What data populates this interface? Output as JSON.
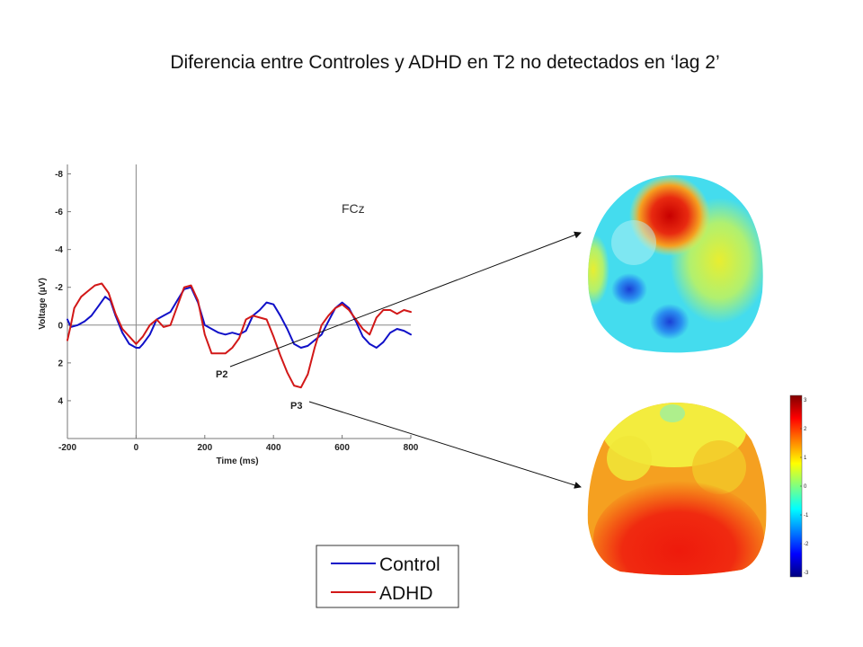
{
  "title": "Diferencia entre Controles y ADHD en T2 no detectados en ‘lag 2’",
  "chart_data": {
    "type": "line",
    "channel": "FCz",
    "xlabel": "Time (ms)",
    "ylabel": "Voltage (μV)",
    "xlim": [
      -200,
      800
    ],
    "ylim": [
      -8.5,
      6
    ],
    "y_inverted": true,
    "grid": false,
    "xticks": [
      -200,
      0,
      200,
      400,
      600,
      800
    ],
    "yticks": [
      -8,
      -6,
      -4,
      -2,
      0,
      2,
      4
    ],
    "series": [
      {
        "name": "Control",
        "color": "#1010c8",
        "x": [
          -200,
          -190,
          -170,
          -150,
          -130,
          -110,
          -90,
          -75,
          -60,
          -40,
          -20,
          0,
          10,
          20,
          40,
          60,
          80,
          100,
          120,
          140,
          160,
          180,
          200,
          220,
          240,
          260,
          280,
          300,
          320,
          340,
          360,
          380,
          400,
          420,
          440,
          460,
          480,
          500,
          520,
          540,
          560,
          580,
          600,
          620,
          640,
          660,
          680,
          700,
          720,
          740,
          760,
          780,
          800
        ],
        "y": [
          -0.3,
          0.1,
          0.0,
          -0.2,
          -0.5,
          -1.0,
          -1.5,
          -1.3,
          -0.5,
          0.4,
          1.0,
          1.2,
          1.2,
          1.0,
          0.5,
          -0.3,
          -0.5,
          -0.7,
          -1.3,
          -1.9,
          -2.0,
          -1.2,
          0.0,
          0.2,
          0.4,
          0.5,
          0.4,
          0.5,
          0.3,
          -0.5,
          -0.8,
          -1.2,
          -1.1,
          -0.5,
          0.2,
          1.0,
          1.2,
          1.1,
          0.8,
          0.5,
          -0.2,
          -0.9,
          -1.2,
          -0.9,
          -0.2,
          0.6,
          1.0,
          1.2,
          0.9,
          0.4,
          0.2,
          0.3,
          0.5
        ]
      },
      {
        "name": "ADHD",
        "color": "#d21818",
        "x": [
          -200,
          -190,
          -180,
          -160,
          -140,
          -120,
          -100,
          -80,
          -60,
          -40,
          -20,
          0,
          20,
          40,
          60,
          80,
          100,
          120,
          140,
          160,
          180,
          200,
          220,
          240,
          260,
          280,
          300,
          320,
          340,
          360,
          380,
          400,
          420,
          440,
          460,
          480,
          500,
          520,
          540,
          560,
          580,
          600,
          620,
          640,
          660,
          680,
          700,
          720,
          740,
          760,
          780,
          800
        ],
        "y": [
          0.8,
          0.0,
          -0.9,
          -1.5,
          -1.8,
          -2.1,
          -2.2,
          -1.7,
          -0.6,
          0.2,
          0.6,
          1.0,
          0.6,
          0.0,
          -0.3,
          0.1,
          0.0,
          -1.0,
          -2.0,
          -2.1,
          -1.3,
          0.5,
          1.5,
          1.5,
          1.5,
          1.2,
          0.7,
          -0.3,
          -0.5,
          -0.4,
          -0.3,
          0.6,
          1.6,
          2.5,
          3.2,
          3.3,
          2.6,
          1.2,
          0.0,
          -0.5,
          -0.9,
          -1.1,
          -0.8,
          -0.3,
          0.2,
          0.5,
          -0.4,
          -0.8,
          -0.8,
          -0.6,
          -0.8,
          -0.7
        ]
      }
    ],
    "annotations": [
      {
        "label": "P2"
      },
      {
        "label": "P3"
      }
    ],
    "legend": {
      "placement": "bottom-center",
      "entries": [
        "Control",
        "ADHD"
      ]
    }
  },
  "colorbar": {
    "ticks": [
      "3",
      "2",
      "1",
      "0",
      "-1",
      "-2",
      "-3"
    ],
    "colors": [
      "#800000",
      "#ff0000",
      "#ff8000",
      "#ffff00",
      "#80ff80",
      "#00ffff",
      "#0080ff",
      "#0000ff",
      "#000080"
    ]
  }
}
